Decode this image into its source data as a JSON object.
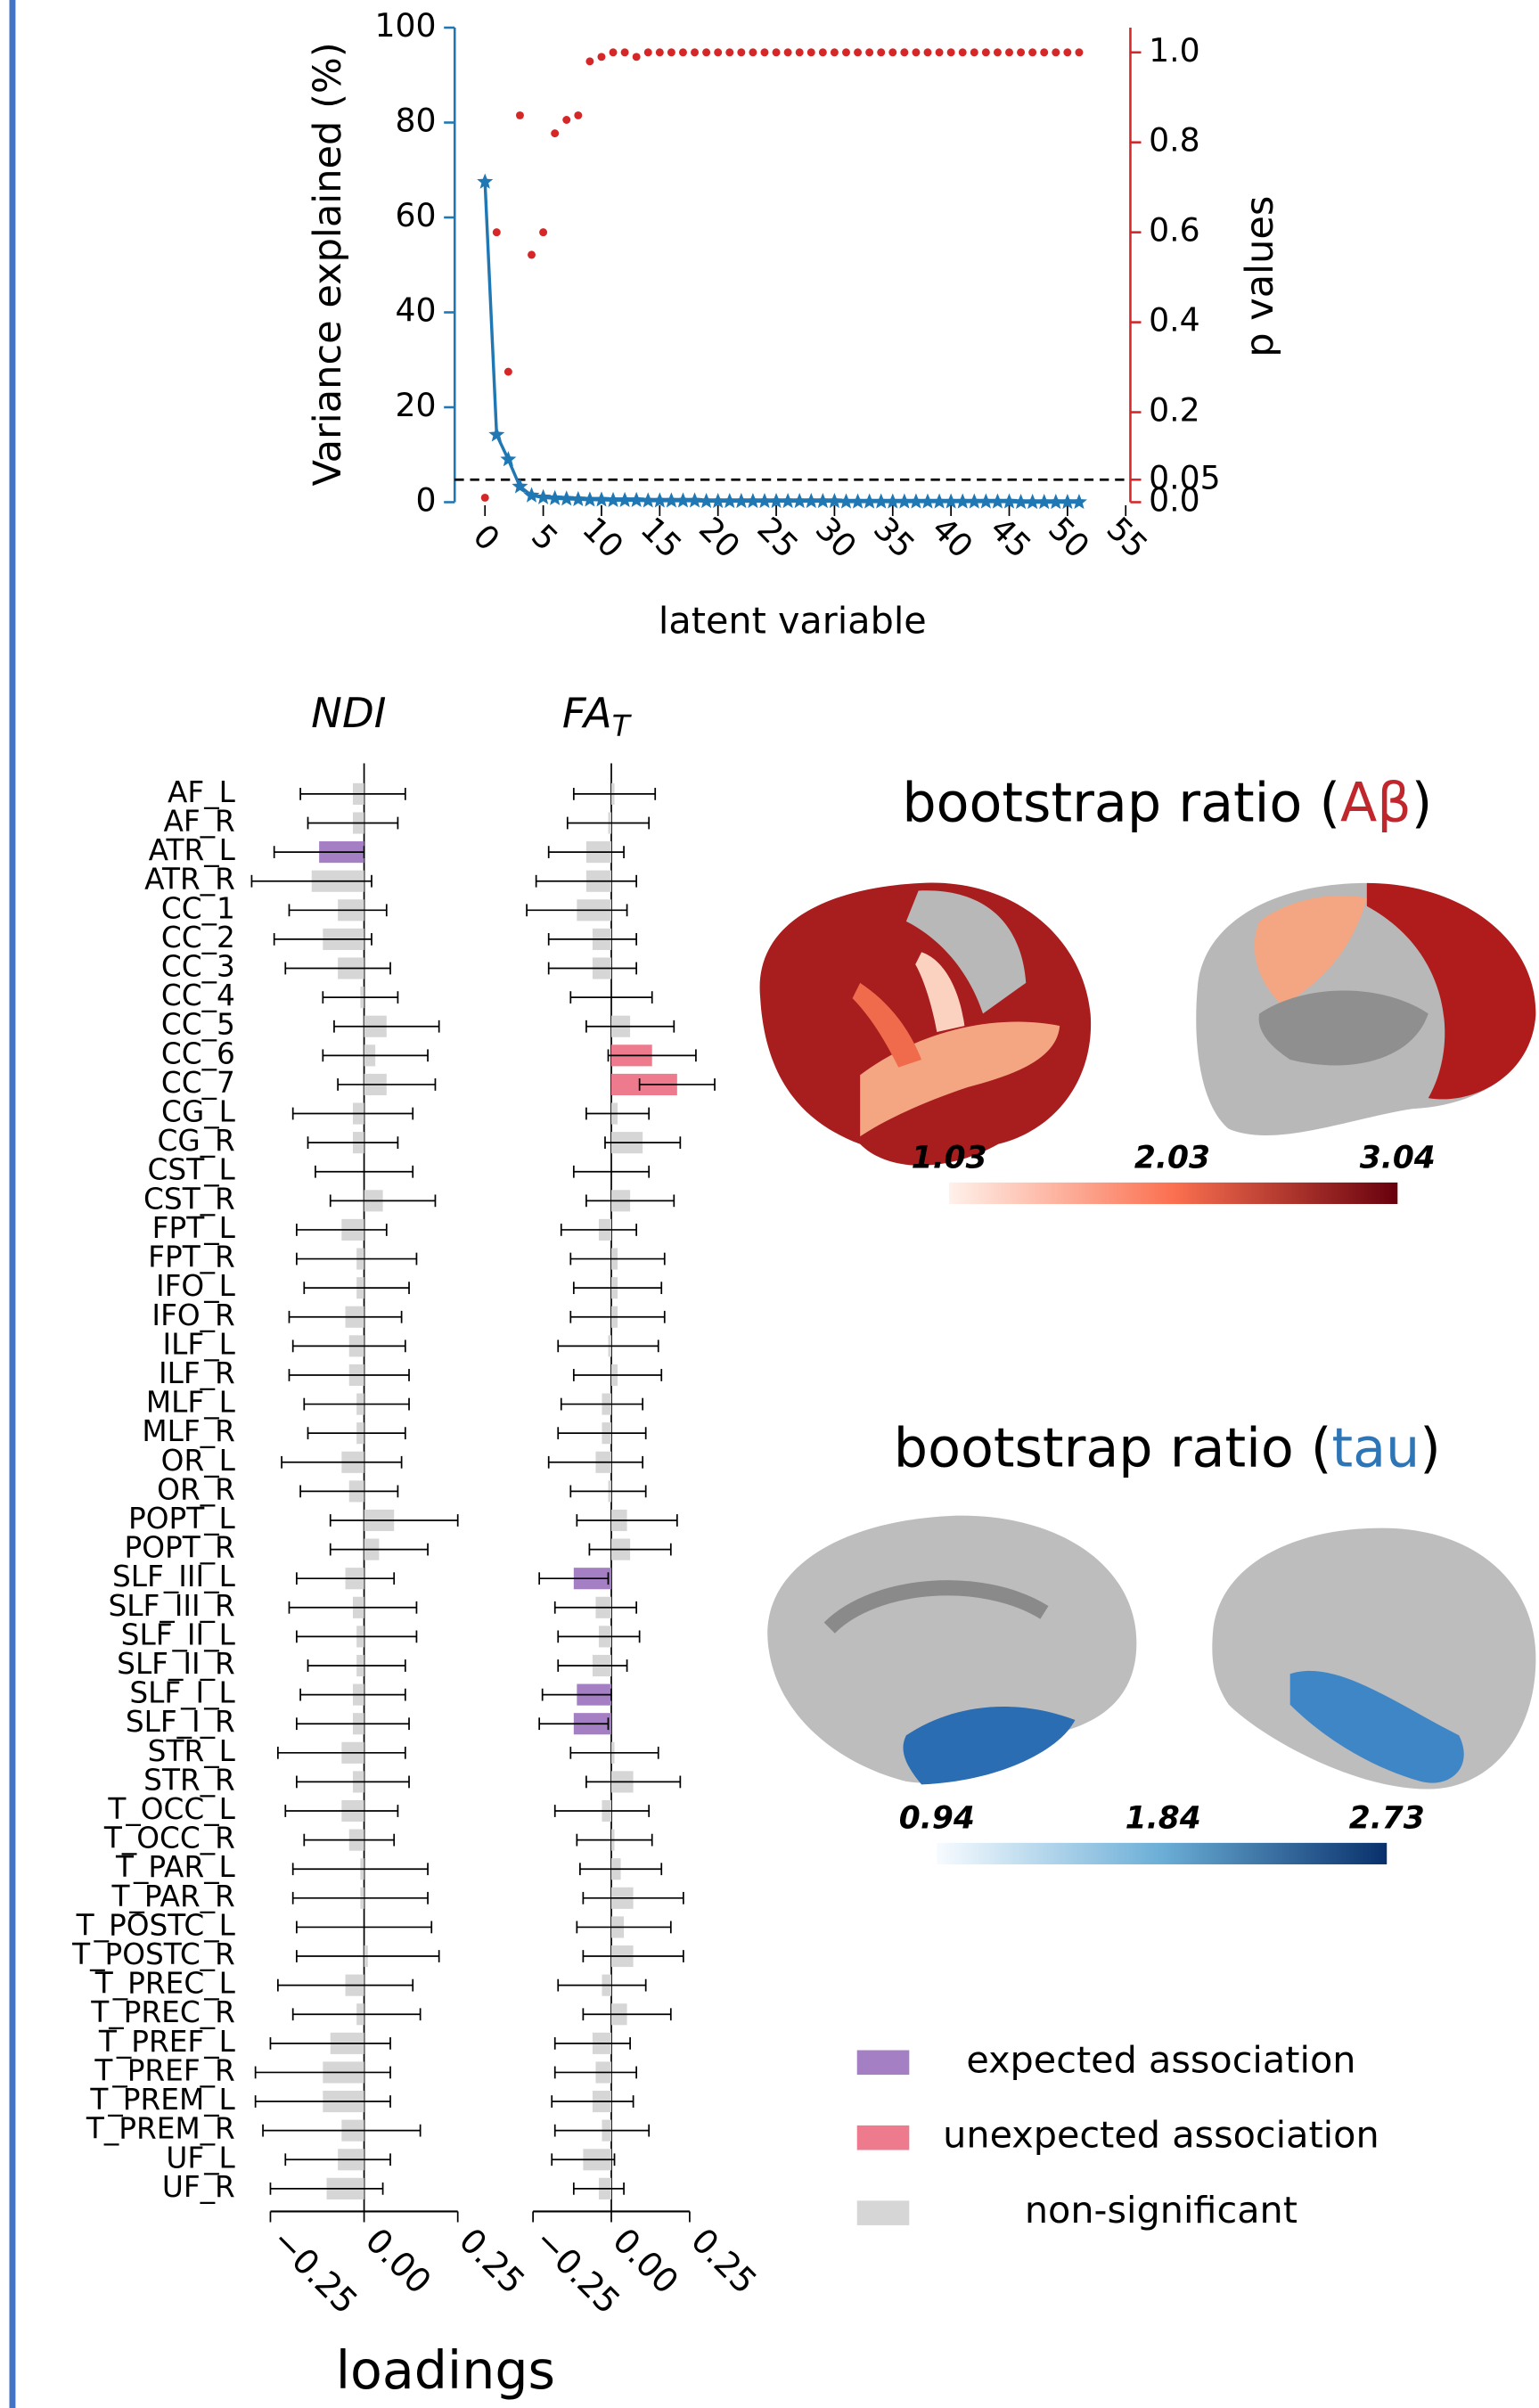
{
  "chart_data": [
    {
      "type": "line",
      "xlabel": "latent variable",
      "ylabel": "Variance explained (%)",
      "y2label": "p values",
      "x": [
        0,
        1,
        2,
        3,
        4,
        5,
        6,
        7,
        8,
        9,
        10,
        11,
        12,
        13,
        14,
        15,
        16,
        17,
        18,
        19,
        20,
        21,
        22,
        23,
        24,
        25,
        26,
        27,
        28,
        29,
        30,
        31,
        32,
        33,
        34,
        35,
        36,
        37,
        38,
        39,
        40,
        41,
        42,
        43,
        44,
        45,
        46,
        47,
        48,
        49,
        50,
        51
      ],
      "series": [
        {
          "color": "#1f77b4",
          "marker": "star",
          "line": true,
          "values": [
            67.5,
            14.2,
            9.0,
            3.3,
            1.4,
            1.0,
            0.8,
            0.7,
            0.6,
            0.5,
            0.5,
            0.4,
            0.4,
            0.4,
            0.3,
            0.3,
            0.3,
            0.3,
            0.3,
            0.2,
            0.2,
            0.2,
            0.2,
            0.2,
            0.2,
            0.2,
            0.2,
            0.2,
            0.2,
            0.2,
            0.2,
            0.1,
            0.1,
            0.1,
            0.1,
            0.1,
            0.1,
            0.1,
            0.1,
            0.1,
            0.1,
            0.1,
            0.1,
            0.1,
            0.1,
            0.1,
            0.0,
            0.0,
            0.0,
            0.0,
            0.0,
            0.0
          ]
        },
        {
          "color": "#d62728",
          "marker": "dot",
          "line": false,
          "axis": "y2",
          "values": [
            0.01,
            0.6,
            0.29,
            0.86,
            0.55,
            0.6,
            0.82,
            0.85,
            0.86,
            0.98,
            0.99,
            1.0,
            1.0,
            0.99,
            1.0,
            1.0,
            1.0,
            1.0,
            1.0,
            1.0,
            1.0,
            1.0,
            1.0,
            1.0,
            1.0,
            1.0,
            1.0,
            1.0,
            1.0,
            1.0,
            1.0,
            1.0,
            1.0,
            1.0,
            1.0,
            1.0,
            1.0,
            1.0,
            1.0,
            1.0,
            1.0,
            1.0,
            1.0,
            1.0,
            1.0,
            1.0,
            1.0,
            1.0,
            1.0,
            1.0,
            1.0,
            1.0
          ]
        }
      ],
      "xlim": [
        -2.6,
        55.4
      ],
      "xticks": [
        0,
        5,
        10,
        15,
        20,
        25,
        30,
        35,
        40,
        45,
        50,
        55
      ],
      "ylim": [
        0,
        100
      ],
      "yticks": [
        0,
        20,
        40,
        60,
        80,
        100
      ],
      "y2lim": [
        0,
        1.055
      ],
      "y2ticks": [
        {
          "value": 0,
          "label": "0.0"
        },
        0.05,
        0.2,
        0.4,
        0.6,
        0.8,
        {
          "value": 1,
          "label": "1.0"
        }
      ],
      "hline_y2": 0.05
    },
    {
      "type": "hbar",
      "xlabel": "loadings",
      "categories": [
        "AF_L",
        "AF_R",
        "ATR_L",
        "ATR_R",
        "CC_1",
        "CC_2",
        "CC_3",
        "CC_4",
        "CC_5",
        "CC_6",
        "CC_7",
        "CG_L",
        "CG_R",
        "CST_L",
        "CST_R",
        "FPT_L",
        "FPT_R",
        "IFO_L",
        "IFO_R",
        "ILF_L",
        "ILF_R",
        "MLF_L",
        "MLF_R",
        "OR_L",
        "OR_R",
        "POPT_L",
        "POPT_R",
        "SLF_III_L",
        "SLF_III_R",
        "SLF_II_L",
        "SLF_II_R",
        "SLF_I_L",
        "SLF_I_R",
        "STR_L",
        "STR_R",
        "T_OCC_L",
        "T_OCC_R",
        "T_PAR_L",
        "T_PAR_R",
        "T_POSTC_L",
        "T_POSTC_R",
        "T_PREC_L",
        "T_PREC_R",
        "T_PREF_L",
        "T_PREF_R",
        "T_PREM_L",
        "T_PREM_R",
        "UF_L",
        "UF_R"
      ],
      "legend": [
        {
          "name": "expected association",
          "color": "#a57fc4"
        },
        {
          "name": "unexpected association",
          "color": "#ee7a8e"
        },
        {
          "name": "non-significant",
          "color": "#d6d6d6"
        }
      ],
      "panels": [
        {
          "title": "NDI",
          "values": [
            -0.03,
            -0.03,
            -0.12,
            -0.14,
            -0.07,
            -0.11,
            -0.07,
            -0.01,
            0.06,
            0.03,
            0.06,
            -0.03,
            -0.03,
            0.0,
            0.05,
            -0.06,
            -0.02,
            -0.02,
            -0.05,
            -0.04,
            -0.04,
            -0.02,
            -0.02,
            -0.06,
            -0.04,
            0.08,
            0.04,
            -0.05,
            -0.03,
            -0.02,
            -0.02,
            -0.03,
            -0.03,
            -0.06,
            -0.03,
            -0.06,
            -0.04,
            -0.01,
            -0.01,
            0.0,
            0.01,
            -0.05,
            -0.02,
            -0.09,
            -0.11,
            -0.11,
            -0.06,
            -0.07,
            -0.1
          ],
          "errors": [
            0.14,
            0.12,
            0.12,
            0.16,
            0.13,
            0.13,
            0.14,
            0.1,
            0.14,
            0.14,
            0.13,
            0.16,
            0.12,
            0.13,
            0.14,
            0.12,
            0.16,
            0.14,
            0.15,
            0.15,
            0.16,
            0.14,
            0.13,
            0.16,
            0.13,
            0.17,
            0.13,
            0.13,
            0.17,
            0.16,
            0.13,
            0.14,
            0.15,
            0.17,
            0.15,
            0.15,
            0.12,
            0.18,
            0.18,
            0.18,
            0.19,
            0.18,
            0.17,
            0.16,
            0.18,
            0.18,
            0.21,
            0.14,
            0.15
          ],
          "groups": [
            2,
            2,
            0,
            2,
            2,
            2,
            2,
            2,
            2,
            2,
            2,
            2,
            2,
            2,
            2,
            2,
            2,
            2,
            2,
            2,
            2,
            2,
            2,
            2,
            2,
            2,
            2,
            2,
            2,
            2,
            2,
            2,
            2,
            2,
            2,
            2,
            2,
            2,
            2,
            2,
            2,
            2,
            2,
            2,
            2,
            2,
            2,
            2,
            2
          ],
          "xlim": [
            -0.25,
            0.25
          ],
          "xticks": [
            {
              "value": -0.25,
              "label": "−0.25"
            },
            {
              "value": 0,
              "label": "0.00"
            },
            {
              "value": 0.25,
              "label": "0.25"
            }
          ]
        },
        {
          "title": "FA",
          "title_subscript": "T",
          "values": [
            0.01,
            -0.01,
            -0.08,
            -0.08,
            -0.11,
            -0.06,
            -0.06,
            0.0,
            0.06,
            0.13,
            0.21,
            0.02,
            0.1,
            0.0,
            0.06,
            -0.04,
            0.02,
            0.02,
            0.02,
            -0.01,
            0.02,
            -0.03,
            -0.03,
            -0.05,
            -0.01,
            0.05,
            0.06,
            -0.12,
            -0.05,
            -0.04,
            -0.06,
            -0.11,
            -0.12,
            0.01,
            0.07,
            -0.03,
            0.01,
            0.03,
            0.07,
            0.04,
            0.07,
            -0.03,
            0.05,
            -0.06,
            -0.05,
            -0.06,
            -0.03,
            -0.09,
            -0.04
          ],
          "errors": [
            0.13,
            0.13,
            0.12,
            0.16,
            0.16,
            0.14,
            0.14,
            0.13,
            0.14,
            0.14,
            0.12,
            0.1,
            0.12,
            0.12,
            0.14,
            0.12,
            0.15,
            0.14,
            0.15,
            0.16,
            0.14,
            0.13,
            0.14,
            0.15,
            0.12,
            0.16,
            0.13,
            0.11,
            0.13,
            0.13,
            0.11,
            0.11,
            0.11,
            0.14,
            0.15,
            0.15,
            0.12,
            0.13,
            0.16,
            0.15,
            0.16,
            0.14,
            0.14,
            0.12,
            0.13,
            0.13,
            0.15,
            0.1,
            0.08
          ],
          "groups": [
            2,
            2,
            2,
            2,
            2,
            2,
            2,
            2,
            2,
            1,
            1,
            2,
            2,
            2,
            2,
            2,
            2,
            2,
            2,
            2,
            2,
            2,
            2,
            2,
            2,
            2,
            2,
            0,
            2,
            2,
            2,
            0,
            0,
            2,
            2,
            2,
            2,
            2,
            2,
            2,
            2,
            2,
            2,
            2,
            2,
            2,
            2,
            2,
            2
          ],
          "xlim": [
            -0.25,
            0.25
          ],
          "xticks": [
            {
              "value": -0.25,
              "label": "−0.25"
            },
            {
              "value": 0,
              "label": "0.00"
            },
            {
              "value": 0.25,
              "label": "0.25"
            }
          ]
        }
      ]
    },
    {
      "type": "colorbar",
      "title": "bootstrap ratio (",
      "title_highlight": "Aβ",
      "title_end": ")",
      "highlight_color": "#c0272d",
      "colors": [
        "#fff1ea",
        "#fb7050",
        "#67000d"
      ],
      "lim": [
        1.03,
        3.04
      ],
      "ticks": [
        1.03,
        2.03,
        3.04
      ]
    },
    {
      "type": "colorbar",
      "title": "bootstrap ratio (",
      "title_highlight": "tau",
      "title_end": ")",
      "highlight_color": "#2e75b6",
      "colors": [
        "#f7fbff",
        "#6baed6",
        "#08306b"
      ],
      "lim": [
        0.94,
        2.73
      ],
      "ticks": [
        0.94,
        1.84,
        2.73
      ]
    }
  ]
}
